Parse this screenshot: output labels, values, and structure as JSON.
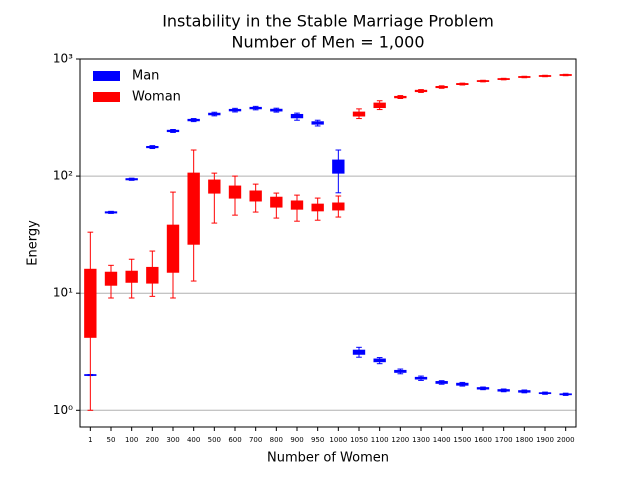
{
  "chart_data": {
    "type": "box",
    "title": "Instability in the Stable Marriage Problem",
    "subtitle": "Number of Men = 1,000",
    "x_label": "Number of Women",
    "y_label": "Energy",
    "categories": [
      "1",
      "50",
      "100",
      "200",
      "300",
      "400",
      "500",
      "600",
      "700",
      "800",
      "900",
      "950",
      "1000",
      "1050",
      "1100",
      "1200",
      "1300",
      "1400",
      "1500",
      "1600",
      "1700",
      "1800",
      "1900",
      "2000"
    ],
    "ylim": [
      0.72,
      1000
    ],
    "log_y": true,
    "grid": true,
    "legend": "upper left",
    "yticks": [
      {
        "value": 1,
        "label": "10⁰"
      },
      {
        "value": 10,
        "label": "10¹"
      },
      {
        "value": 100,
        "label": "10²"
      },
      {
        "value": 1000,
        "label": "10³"
      }
    ],
    "series": [
      {
        "name": "Man",
        "color": "#0000ff",
        "boxes": [
          [
            1.98,
            1.99,
            2,
            2.01,
            2.02
          ],
          [
            48,
            48.5,
            49,
            49.5,
            50
          ],
          [
            92,
            93,
            94,
            95,
            96
          ],
          [
            172,
            175,
            177,
            179,
            182
          ],
          [
            236,
            240,
            243,
            246,
            250
          ],
          [
            292,
            297,
            301,
            305,
            310
          ],
          [
            327,
            334,
            339,
            344,
            351
          ],
          [
            353,
            361,
            366,
            371,
            379
          ],
          [
            368,
            376,
            381,
            386,
            394
          ],
          [
            352,
            360,
            366,
            372,
            380
          ],
          [
            300,
            315,
            326,
            336,
            345
          ],
          [
            268,
            278,
            284,
            291,
            300
          ],
          [
            72,
            106,
            125,
            137,
            167
          ],
          [
            2.84,
            3.01,
            3.13,
            3.26,
            3.45
          ],
          [
            2.5,
            2.6,
            2.67,
            2.74,
            2.82
          ],
          [
            2.05,
            2.11,
            2.15,
            2.19,
            2.25
          ],
          [
            1.8,
            1.85,
            1.88,
            1.91,
            1.96
          ],
          [
            1.67,
            1.7,
            1.73,
            1.76,
            1.79
          ],
          [
            1.61,
            1.64,
            1.67,
            1.7,
            1.73
          ],
          [
            1.5,
            1.52,
            1.54,
            1.56,
            1.58
          ],
          [
            1.44,
            1.46,
            1.48,
            1.5,
            1.52
          ],
          [
            1.41,
            1.43,
            1.45,
            1.47,
            1.49
          ],
          [
            1.37,
            1.39,
            1.4,
            1.41,
            1.43
          ],
          [
            1.34,
            1.36,
            1.37,
            1.38,
            1.4
          ]
        ]
      },
      {
        "name": "Woman",
        "color": "#ff0000",
        "boxes": [
          [
            1,
            4.2,
            8,
            16,
            33.2
          ],
          [
            9.1,
            11.7,
            13,
            15.1,
            17.3
          ],
          [
            9.1,
            12.4,
            13.5,
            15.4,
            19.5
          ],
          [
            9.4,
            12.2,
            14,
            16.6,
            22.9
          ],
          [
            9.1,
            15.1,
            24,
            38.1,
            73
          ],
          [
            12.7,
            26.2,
            50,
            106,
            167
          ],
          [
            39.7,
            71.6,
            80,
            92.5,
            106
          ],
          [
            46.4,
            64.9,
            73,
            82.2,
            100
          ],
          [
            49.3,
            61.3,
            68,
            74.6,
            85.4
          ],
          [
            43.8,
            54.4,
            60,
            66,
            71.6
          ],
          [
            41.2,
            52.2,
            57,
            61.3,
            68.8
          ],
          [
            42,
            50.5,
            54,
            57.6,
            64.9
          ],
          [
            44.7,
            51.4,
            55,
            58.9,
            67.6
          ],
          [
            310,
            326,
            339,
            352,
            375
          ],
          [
            370,
            385,
            405,
            420,
            440
          ],
          [
            460,
            467,
            473,
            479,
            487
          ],
          [
            518,
            527,
            533,
            540,
            548
          ],
          [
            562,
            570,
            576,
            582,
            590
          ],
          [
            600,
            606,
            611,
            616,
            622
          ],
          [
            638,
            644,
            648,
            652,
            658
          ],
          [
            664,
            670,
            674,
            678,
            684
          ],
          [
            692,
            698,
            702,
            706,
            712
          ],
          [
            706,
            712,
            716,
            720,
            726
          ],
          [
            720,
            726,
            730,
            734,
            740
          ]
        ]
      }
    ]
  }
}
